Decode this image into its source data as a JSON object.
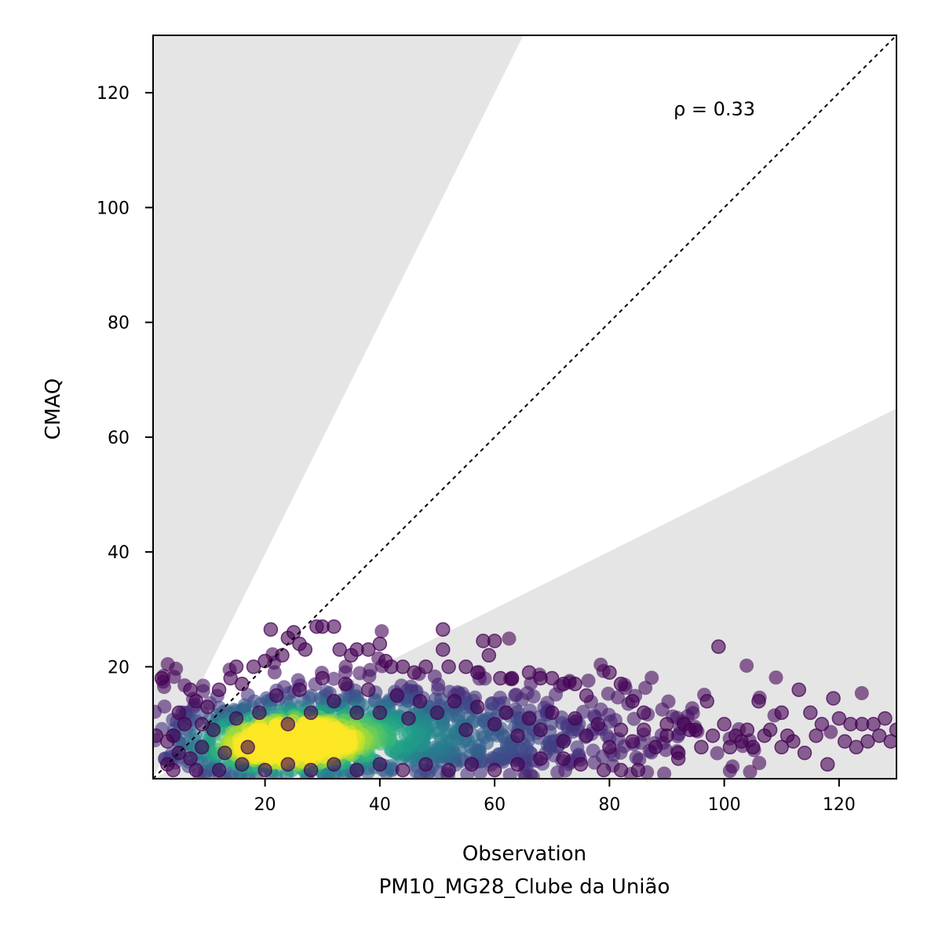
{
  "chart_data": {
    "type": "scatter",
    "xlabel": "Observation",
    "xlabel_sub": "PM10_MG28_Clube da União",
    "ylabel": "CMAQ",
    "xlim": [
      0.5,
      130
    ],
    "ylim": [
      0.5,
      130
    ],
    "xticks": [
      20,
      40,
      60,
      80,
      100,
      120
    ],
    "yticks": [
      20,
      40,
      60,
      80,
      100,
      120
    ],
    "annotation": "ρ = 0.33",
    "reference_line": "1:1",
    "shaded_band_slopes": [
      0.5,
      2.0
    ],
    "colormap": "viridis density",
    "point_color_low": "#440154",
    "point_color_high": "#fde725",
    "band_color": "#e5e5e5",
    "points": [
      [
        2,
        18
      ],
      [
        4,
        8
      ],
      [
        5,
        12
      ],
      [
        7,
        16
      ],
      [
        8,
        14
      ],
      [
        9,
        10
      ],
      [
        10,
        13
      ],
      [
        12,
        16
      ],
      [
        14,
        18
      ],
      [
        15,
        20
      ],
      [
        16,
        17
      ],
      [
        18,
        20
      ],
      [
        20,
        21
      ],
      [
        21,
        26.5
      ],
      [
        23,
        22
      ],
      [
        24,
        25
      ],
      [
        25,
        26
      ],
      [
        26,
        24
      ],
      [
        27,
        23
      ],
      [
        29,
        27
      ],
      [
        30,
        27
      ],
      [
        32,
        27
      ],
      [
        33,
        23
      ],
      [
        35,
        22
      ],
      [
        36,
        23
      ],
      [
        38,
        23
      ],
      [
        40,
        24
      ],
      [
        41,
        21
      ],
      [
        42,
        20
      ],
      [
        44,
        20
      ],
      [
        46,
        19
      ],
      [
        48,
        20
      ],
      [
        51,
        26.5
      ],
      [
        51,
        23
      ],
      [
        52,
        20
      ],
      [
        55,
        20
      ],
      [
        57,
        19
      ],
      [
        58,
        24.5
      ],
      [
        60,
        24.5
      ],
      [
        59,
        22
      ],
      [
        61,
        18
      ],
      [
        63,
        18
      ],
      [
        66,
        19
      ],
      [
        68,
        18
      ],
      [
        70,
        18
      ],
      [
        72,
        17
      ],
      [
        74,
        17
      ],
      [
        76,
        15
      ],
      [
        80,
        19
      ],
      [
        82,
        17
      ],
      [
        84,
        14
      ],
      [
        86,
        12
      ],
      [
        90,
        10
      ],
      [
        93,
        10
      ],
      [
        95,
        9
      ],
      [
        97,
        14
      ],
      [
        99,
        23.5
      ],
      [
        100,
        10
      ],
      [
        102,
        8
      ],
      [
        104,
        9
      ],
      [
        106,
        14
      ],
      [
        108,
        9
      ],
      [
        110,
        12
      ],
      [
        111,
        8
      ],
      [
        113,
        16
      ],
      [
        115,
        12
      ],
      [
        117,
        10
      ],
      [
        119,
        14.5
      ],
      [
        120,
        11
      ],
      [
        122,
        10
      ],
      [
        124,
        10
      ],
      [
        126,
        10
      ],
      [
        128,
        11
      ],
      [
        130,
        9
      ],
      [
        1,
        8
      ],
      [
        3,
        7
      ],
      [
        3,
        3
      ],
      [
        5,
        5
      ],
      [
        6,
        10
      ],
      [
        7,
        4
      ],
      [
        9,
        6
      ],
      [
        11,
        9
      ],
      [
        13,
        5
      ],
      [
        15,
        11
      ],
      [
        17,
        6
      ],
      [
        19,
        12
      ],
      [
        22,
        15
      ],
      [
        24,
        10
      ],
      [
        26,
        16
      ],
      [
        28,
        12
      ],
      [
        30,
        18
      ],
      [
        32,
        14
      ],
      [
        34,
        17
      ],
      [
        36,
        12
      ],
      [
        38,
        16
      ],
      [
        40,
        12
      ],
      [
        43,
        15
      ],
      [
        45,
        11
      ],
      [
        47,
        14
      ],
      [
        50,
        12
      ],
      [
        53,
        14
      ],
      [
        55,
        9
      ],
      [
        57,
        13
      ],
      [
        60,
        10
      ],
      [
        62,
        12
      ],
      [
        64,
        8
      ],
      [
        66,
        11
      ],
      [
        68,
        9
      ],
      [
        70,
        12
      ],
      [
        72,
        7
      ],
      [
        74,
        11
      ],
      [
        76,
        8
      ],
      [
        78,
        10
      ],
      [
        80,
        6
      ],
      [
        82,
        9
      ],
      [
        84,
        7
      ],
      [
        86,
        9
      ],
      [
        88,
        6
      ],
      [
        90,
        8
      ],
      [
        92,
        4
      ],
      [
        94,
        9
      ],
      [
        96,
        6
      ],
      [
        98,
        8
      ],
      [
        101,
        6
      ],
      [
        103,
        7
      ],
      [
        105,
        6
      ],
      [
        107,
        8
      ],
      [
        110,
        6
      ],
      [
        112,
        7
      ],
      [
        114,
        5
      ],
      [
        116,
        8
      ],
      [
        118,
        3
      ],
      [
        121,
        7
      ],
      [
        123,
        6
      ],
      [
        125,
        7
      ],
      [
        127,
        8
      ],
      [
        129,
        7
      ],
      [
        4,
        2
      ],
      [
        8,
        2
      ],
      [
        12,
        2
      ],
      [
        16,
        3
      ],
      [
        20,
        2
      ],
      [
        24,
        3
      ],
      [
        28,
        2
      ],
      [
        32,
        3
      ],
      [
        36,
        2
      ],
      [
        40,
        3
      ],
      [
        44,
        2
      ],
      [
        48,
        3
      ],
      [
        52,
        2
      ],
      [
        56,
        3
      ],
      [
        60,
        2
      ],
      [
        64,
        3
      ],
      [
        68,
        4
      ],
      [
        72,
        4
      ],
      [
        75,
        3
      ],
      [
        79,
        2
      ],
      [
        82,
        2
      ],
      [
        85,
        2
      ],
      [
        92,
        5
      ]
    ],
    "density_cores": [
      {
        "x": 25,
        "y": 7,
        "sx": 6,
        "sy": 2.2,
        "level": 1.0
      },
      {
        "x": 20,
        "y": 6,
        "sx": 9,
        "sy": 3.2,
        "level": 0.7
      },
      {
        "x": 30,
        "y": 8,
        "sx": 13,
        "sy": 4.2,
        "level": 0.5
      },
      {
        "x": 40,
        "y": 8,
        "sx": 20,
        "sy": 5.0,
        "level": 0.3
      },
      {
        "x": 55,
        "y": 8,
        "sx": 28,
        "sy": 5.5,
        "level": 0.15
      }
    ]
  }
}
